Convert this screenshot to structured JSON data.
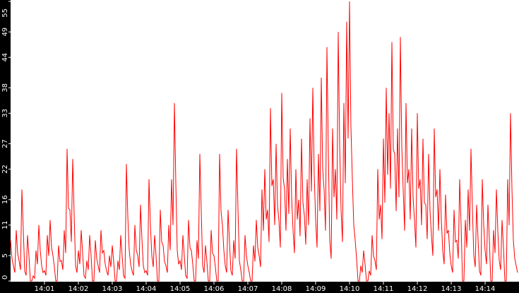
{
  "chart_data": {
    "type": "line",
    "title": "",
    "xlabel": "",
    "ylabel": "",
    "line_color": "#ff0000",
    "axis_background": "#000000",
    "axis_text_color": "#ffffff",
    "grid": false,
    "ylim": [
      0,
      55
    ],
    "xlim": [
      "14:00:00",
      "14:15:00"
    ],
    "y_ticks": [
      "0",
      "5",
      "11",
      "16",
      "22",
      "27",
      "33",
      "38",
      "44",
      "49",
      "55"
    ],
    "x_ticks": [
      "14:01",
      "14:02",
      "14:03",
      "14:04",
      "14:05",
      "14:06",
      "14:07",
      "14:08",
      "14:09",
      "14:10",
      "14:11",
      "14:12",
      "14:13",
      "14:14"
    ],
    "sample_interval_seconds": 5,
    "values": [
      8,
      3,
      10,
      4,
      18,
      2,
      9,
      0,
      1,
      6,
      11,
      3,
      2,
      9,
      12,
      5,
      0,
      7,
      4,
      10,
      26,
      14,
      24,
      3,
      6,
      10,
      1,
      4,
      9,
      0,
      8,
      3,
      10,
      6,
      2,
      5,
      7,
      0,
      4,
      9,
      1,
      23,
      6,
      2,
      11,
      5,
      15,
      3,
      2,
      20,
      5,
      9,
      0,
      14,
      7,
      3,
      11,
      20,
      35,
      6,
      4,
      9,
      1,
      12,
      6,
      0,
      8,
      25,
      3,
      7,
      0,
      10,
      5,
      0,
      25,
      11,
      3,
      14,
      2,
      8,
      26,
      4,
      0,
      9,
      3,
      0,
      7,
      12,
      5,
      18,
      22,
      14,
      34,
      20,
      27,
      12,
      37,
      18,
      24,
      30,
      10,
      22,
      16,
      28,
      13,
      20,
      32,
      38,
      12,
      25,
      40,
      18,
      46,
      8,
      30,
      22,
      49,
      14,
      35,
      51,
      55,
      20,
      8,
      0,
      3,
      6,
      0,
      2,
      9,
      4,
      22,
      15,
      28,
      38,
      33,
      47,
      25,
      30,
      48,
      18,
      35,
      22,
      30,
      12,
      33,
      20,
      28,
      15,
      25,
      9,
      30,
      18,
      22,
      6,
      17,
      10,
      3,
      14,
      8,
      20,
      0,
      12,
      18,
      26,
      5,
      15,
      2,
      20,
      6,
      15,
      0,
      10,
      18,
      4,
      12,
      0,
      20,
      33,
      8,
      3
    ]
  }
}
